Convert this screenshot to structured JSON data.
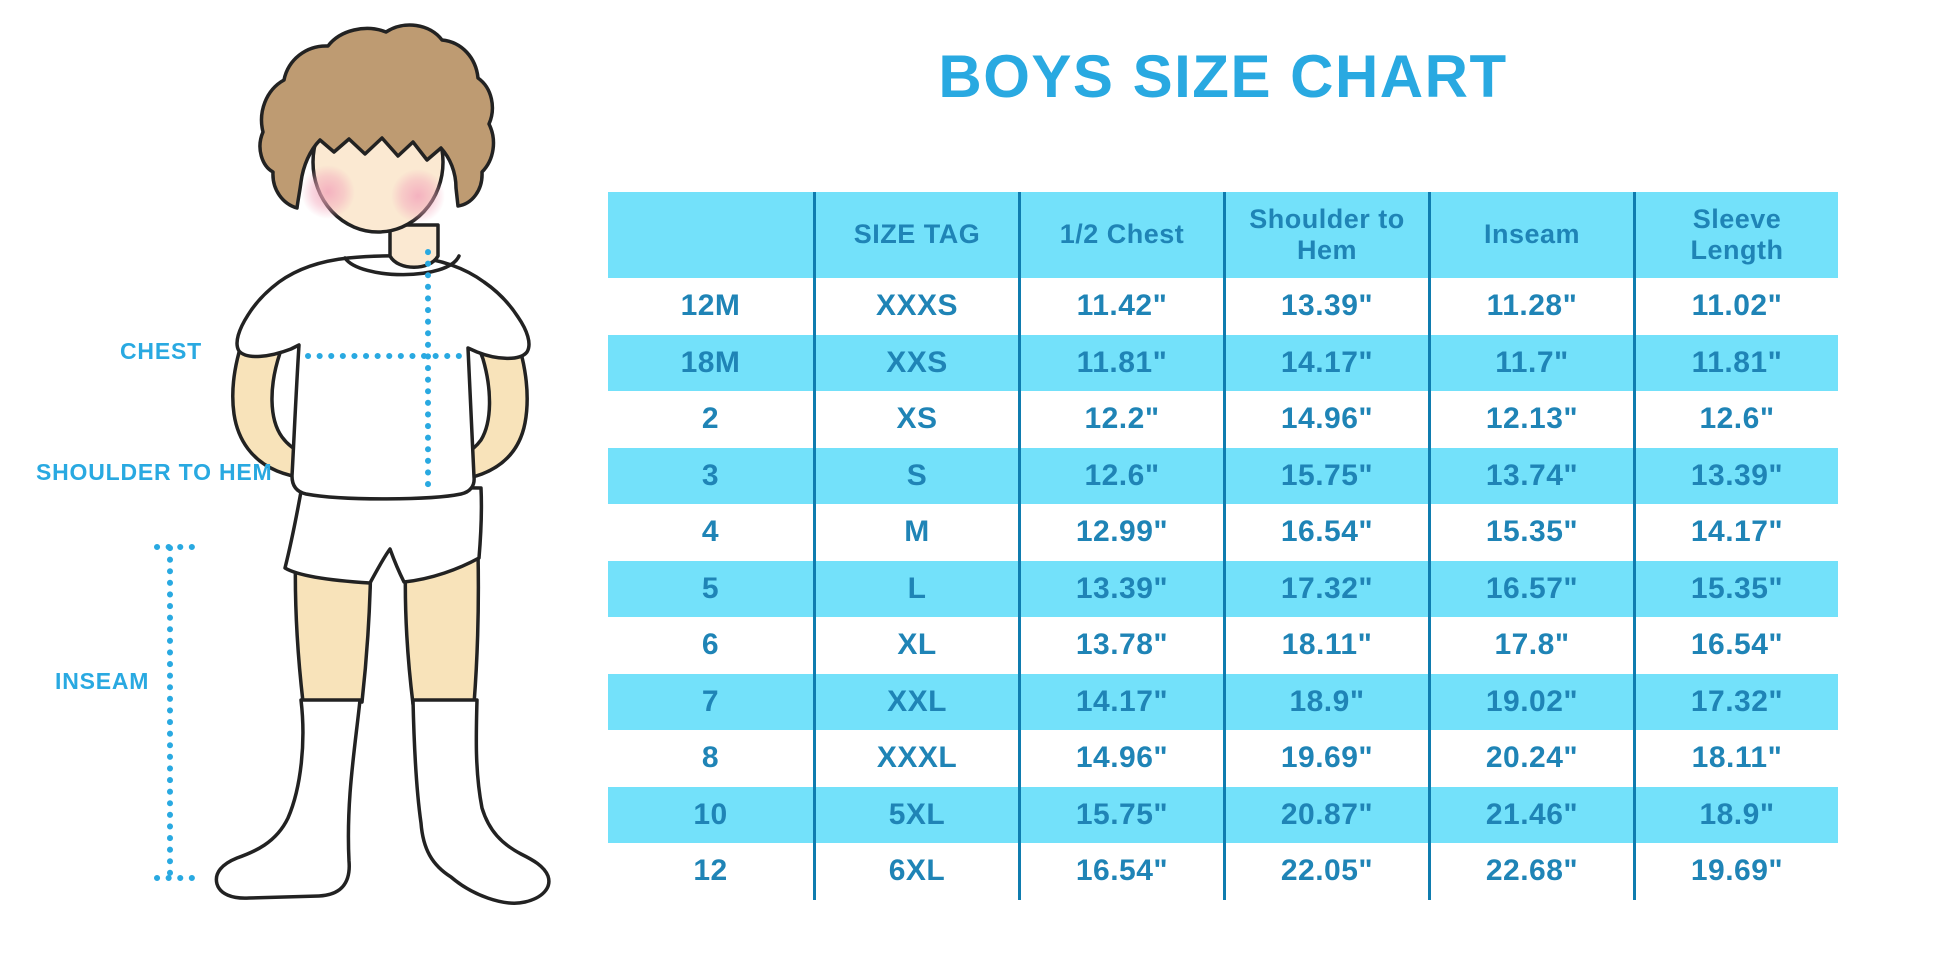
{
  "title": "BOYS SIZE CHART",
  "colors": {
    "accent": "#29A9E1",
    "cyan": "#73E1FA",
    "divider": "#0F7CAF",
    "tblText": "#1F84B6"
  },
  "figure": {
    "description": "cartoon boy in white t-shirt, shorts and knee socks with dotted measurement guides",
    "labels": [
      {
        "id": "chest",
        "text": "CHEST"
      },
      {
        "id": "shoulder_to_hem",
        "text": "SHOULDER TO HEM"
      },
      {
        "id": "inseam",
        "text": "INSEAM"
      }
    ]
  },
  "chart_data": {
    "type": "table",
    "title": "BOYS SIZE CHART",
    "units": "inches",
    "columns": [
      "",
      "SIZE TAG",
      "1/2 Chest",
      "Shoulder to Hem",
      "Inseam",
      "Sleeve Length"
    ],
    "rows": [
      [
        "12M",
        "XXXS",
        "11.42\"",
        "13.39\"",
        "11.28\"",
        "11.02\""
      ],
      [
        "18M",
        "XXS",
        "11.81\"",
        "14.17\"",
        "11.7\"",
        "11.81\""
      ],
      [
        "2",
        "XS",
        "12.2\"",
        "14.96\"",
        "12.13\"",
        "12.6\""
      ],
      [
        "3",
        "S",
        "12.6\"",
        "15.75\"",
        "13.74\"",
        "13.39\""
      ],
      [
        "4",
        "M",
        "12.99\"",
        "16.54\"",
        "15.35\"",
        "14.17\""
      ],
      [
        "5",
        "L",
        "13.39\"",
        "17.32\"",
        "16.57\"",
        "15.35\""
      ],
      [
        "6",
        "XL",
        "13.78\"",
        "18.11\"",
        "17.8\"",
        "16.54\""
      ],
      [
        "7",
        "XXL",
        "14.17\"",
        "18.9\"",
        "19.02\"",
        "17.32\""
      ],
      [
        "8",
        "XXXL",
        "14.96\"",
        "19.69\"",
        "20.24\"",
        "18.11\""
      ],
      [
        "10",
        "5XL",
        "15.75\"",
        "20.87\"",
        "21.46\"",
        "18.9\""
      ],
      [
        "12",
        "6XL",
        "16.54\"",
        "22.05\"",
        "22.68\"",
        "19.69\""
      ]
    ],
    "row_stripe_colors": [
      "#FFFFFF",
      "#73E1FA"
    ],
    "legend_position": "none",
    "grid": "vertical-dividers-only"
  }
}
